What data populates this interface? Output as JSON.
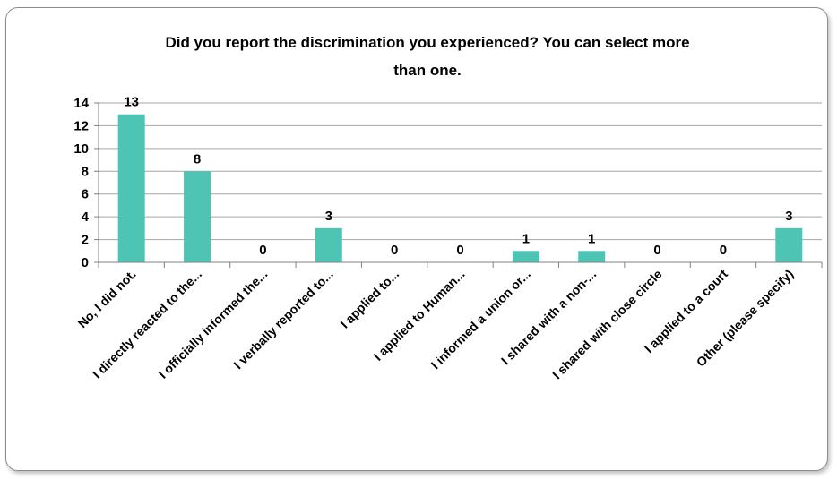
{
  "chart_data": {
    "type": "bar",
    "title": "Did you report the discrimination you experienced? You can select more than one.",
    "title_lines": [
      "Did you report the discrimination you experienced? You can select more",
      "than one."
    ],
    "categories": [
      "No, I did not.",
      "I directly reacted to the...",
      "I officially informed the...",
      "I verbally reported to...",
      "I applied to...",
      "I applied to Human...",
      "I informed a union or...",
      "I shared with a non-...",
      "I shared with close circle",
      "I applied to a court",
      "Other (please specify)"
    ],
    "values": [
      13,
      8,
      0,
      3,
      0,
      0,
      1,
      1,
      0,
      0,
      3
    ],
    "ylim": [
      0,
      14
    ],
    "yticks": [
      0,
      2,
      4,
      6,
      8,
      10,
      12,
      14
    ],
    "grid": true,
    "legend": "none",
    "bar_color": "#4ec5b4"
  }
}
